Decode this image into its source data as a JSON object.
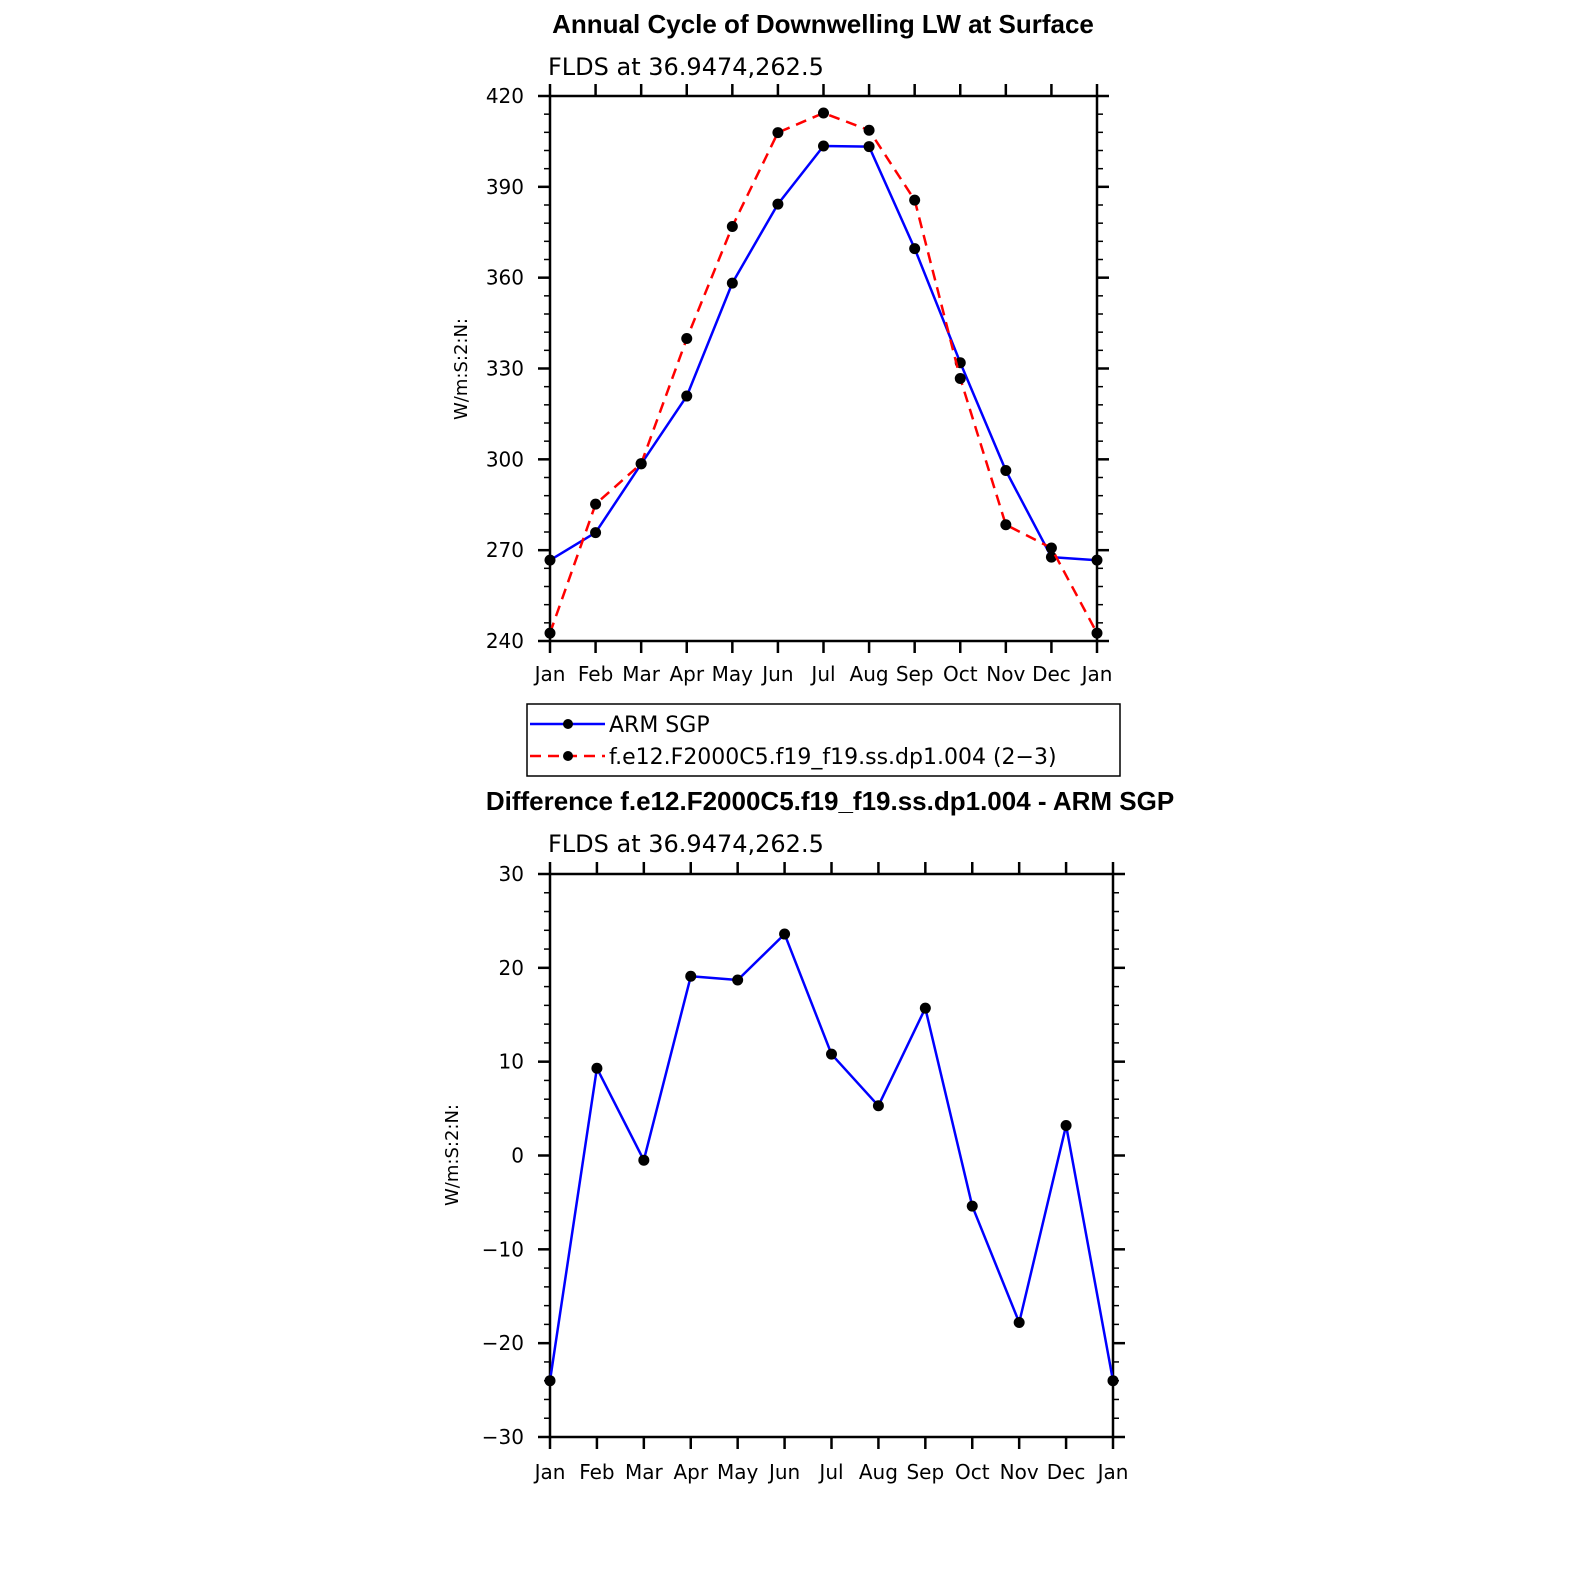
{
  "chart_data": [
    {
      "type": "line",
      "title": "Annual Cycle of Downwelling LW at Surface",
      "subtitle": "FLDS at 36.9474,262.5",
      "ylabel": "W/m:S:2:N:",
      "xlabel": "",
      "categories": [
        "Jan",
        "Feb",
        "Mar",
        "Apr",
        "May",
        "Jun",
        "Jul",
        "Aug",
        "Sep",
        "Oct",
        "Nov",
        "Dec",
        "Jan"
      ],
      "ylim": [
        240,
        420
      ],
      "yticks": [
        "240",
        "270",
        "300",
        "330",
        "360",
        "390",
        "420"
      ],
      "series": [
        {
          "name": "ARM SGP",
          "color": "#0000ff",
          "dash": "solid",
          "values": [
            266.7,
            275.8,
            298.5,
            320.9,
            358.2,
            384.3,
            403.5,
            403.3,
            369.6,
            331.9,
            296.3,
            267.7,
            266.7
          ]
        },
        {
          "name": "f.e12.F2000C5.f19_f19.ss.dp1.004 (2−3)",
          "color": "#ff0000",
          "dash": "dashed",
          "values": [
            242.6,
            285.2,
            298.6,
            339.9,
            376.9,
            407.9,
            414.4,
            408.7,
            385.6,
            326.7,
            278.4,
            270.7,
            242.6
          ]
        }
      ]
    },
    {
      "type": "line",
      "title": "Difference f.e12.F2000C5.f19_f19.ss.dp1.004 - ARM SGP",
      "subtitle": "FLDS at 36.9474,262.5",
      "ylabel": "W/m:S:2:N:",
      "xlabel": "",
      "categories": [
        "Jan",
        "Feb",
        "Mar",
        "Apr",
        "May",
        "Jun",
        "Jul",
        "Aug",
        "Sep",
        "Oct",
        "Nov",
        "Dec",
        "Jan"
      ],
      "ylim": [
        -30,
        30
      ],
      "yticks": [
        "−30",
        "−20",
        "−10",
        "0",
        "10",
        "20",
        "30"
      ],
      "series": [
        {
          "name": "Difference",
          "color": "#0000ff",
          "dash": "solid",
          "values": [
            -24.0,
            9.3,
            -0.5,
            19.1,
            18.7,
            23.6,
            10.8,
            5.3,
            15.7,
            -5.4,
            -17.8,
            3.2,
            -24.0
          ]
        }
      ]
    }
  ],
  "legend": {
    "items": [
      "ARM SGP",
      "f.e12.F2000C5.f19_f19.ss.dp1.004 (2−3)"
    ]
  }
}
